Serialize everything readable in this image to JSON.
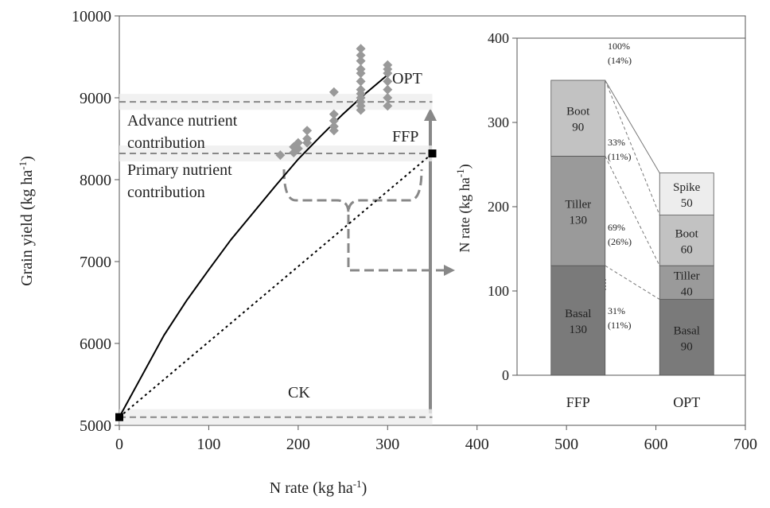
{
  "chart_data": [
    {
      "type": "line",
      "xlabel": [
        "N rate (kg ha",
        "-1",
        ")"
      ],
      "ylabel": [
        "Grain yield (kg ha",
        "-1",
        ")"
      ],
      "xlim": [
        0,
        700
      ],
      "xticks": [
        0,
        100,
        200,
        300,
        400,
        500,
        600,
        700
      ],
      "ylim": [
        5000,
        10000
      ],
      "yticks": [
        5000,
        6000,
        7000,
        8000,
        9000,
        10000
      ],
      "series": [
        {
          "type": "line",
          "style": "solid",
          "color": "#000000",
          "x": [
            0,
            25,
            50,
            75,
            100,
            125,
            150,
            175,
            200,
            225,
            250,
            275,
            300
          ],
          "values": [
            5100,
            5600,
            6100,
            6520,
            6900,
            7270,
            7600,
            7930,
            8250,
            8530,
            8800,
            9050,
            9280
          ]
        },
        {
          "type": "line",
          "style": "dotted",
          "color": "#000000",
          "x": [
            0,
            350
          ],
          "values": [
            5100,
            8320
          ]
        },
        {
          "type": "scatter",
          "color": "#999999",
          "x": [
            180,
            195,
            195,
            200,
            200,
            210,
            210,
            210,
            240,
            240,
            240,
            240,
            240,
            270,
            270,
            270,
            270,
            270,
            270,
            270,
            270,
            270,
            270,
            270,
            270,
            300,
            300,
            300,
            300,
            300,
            300,
            300
          ],
          "values": [
            8300,
            8330,
            8400,
            8380,
            8450,
            8450,
            8500,
            8600,
            8600,
            8650,
            8720,
            8800,
            9070,
            8850,
            8900,
            8950,
            9000,
            9050,
            9100,
            9200,
            9300,
            9350,
            9450,
            9520,
            9600,
            8900,
            9000,
            9100,
            9200,
            9300,
            9350,
            9400
          ]
        }
      ],
      "points": [
        {
          "label": "CK",
          "x": 0,
          "y": 5100,
          "marker": true
        },
        {
          "label": "FFP",
          "x": 350,
          "y": 8320,
          "marker": true
        },
        {
          "label": "OPT",
          "x": 300,
          "y": 9280,
          "marker": false
        }
      ],
      "hlines": [
        8950,
        8320,
        5100
      ],
      "annotations": [
        "Advance nutrient",
        "contribution",
        "Primary nutrient",
        "contribution"
      ]
    },
    {
      "type": "bar",
      "stacked": true,
      "ylabel": [
        "N rate (kg ha",
        "-1",
        ")"
      ],
      "categories": [
        "FFP",
        "OPT"
      ],
      "ylim": [
        0,
        400
      ],
      "yticks": [
        0,
        100,
        200,
        300,
        400
      ],
      "series": [
        {
          "name": "Basal",
          "color": "#7a7a7a",
          "values": [
            130,
            90
          ]
        },
        {
          "name": "Tiller",
          "color": "#9a9a9a",
          "values": [
            130,
            40
          ]
        },
        {
          "name": "Boot",
          "color": "#c2c2c2",
          "values": [
            90,
            60
          ]
        },
        {
          "name": "Spike",
          "color": "#ededed",
          "values": [
            null,
            50
          ]
        }
      ],
      "percent_labels": [
        [
          "100%",
          "(14%)"
        ],
        [
          "33%",
          "(11%)"
        ],
        [
          "69%",
          "(26%)"
        ],
        [
          "31%",
          "(11%)"
        ]
      ]
    }
  ]
}
